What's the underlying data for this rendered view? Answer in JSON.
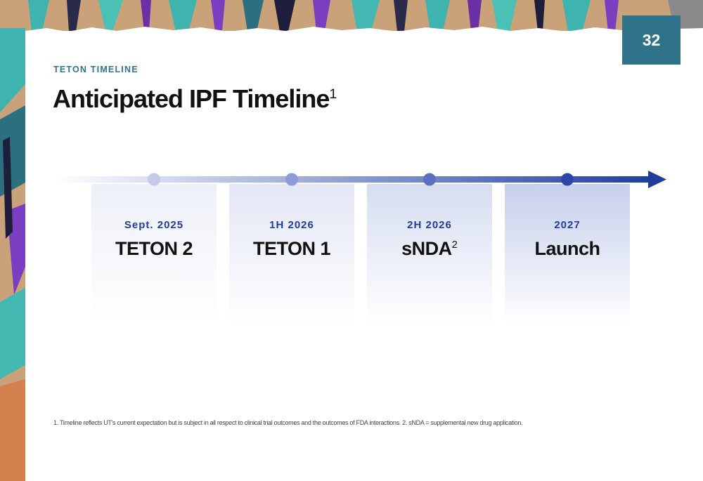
{
  "page_number": "32",
  "eyebrow": "TETON TIMELINE",
  "title": {
    "text": "Anticipated IPF Timeline",
    "superscript": "1"
  },
  "milestones": [
    {
      "date": "Sept. 2025",
      "label": "TETON 2",
      "superscript": ""
    },
    {
      "date": "1H 2026",
      "label": "TETON 1",
      "superscript": ""
    },
    {
      "date": "2H 2026",
      "label": "sNDA",
      "superscript": "2"
    },
    {
      "date": "2027",
      "label": "Launch",
      "superscript": ""
    }
  ],
  "footnote": "1. Timeline reflects UT's current expectation but is subject in all respect to clinical trial outcomes and the outcomes of FDA interactions. 2. sNDA = supplemental new drug application.",
  "colors": {
    "accent_teal": "#2e7389",
    "timeline_blue": "#1f3d9c",
    "title_text": "#111111"
  }
}
